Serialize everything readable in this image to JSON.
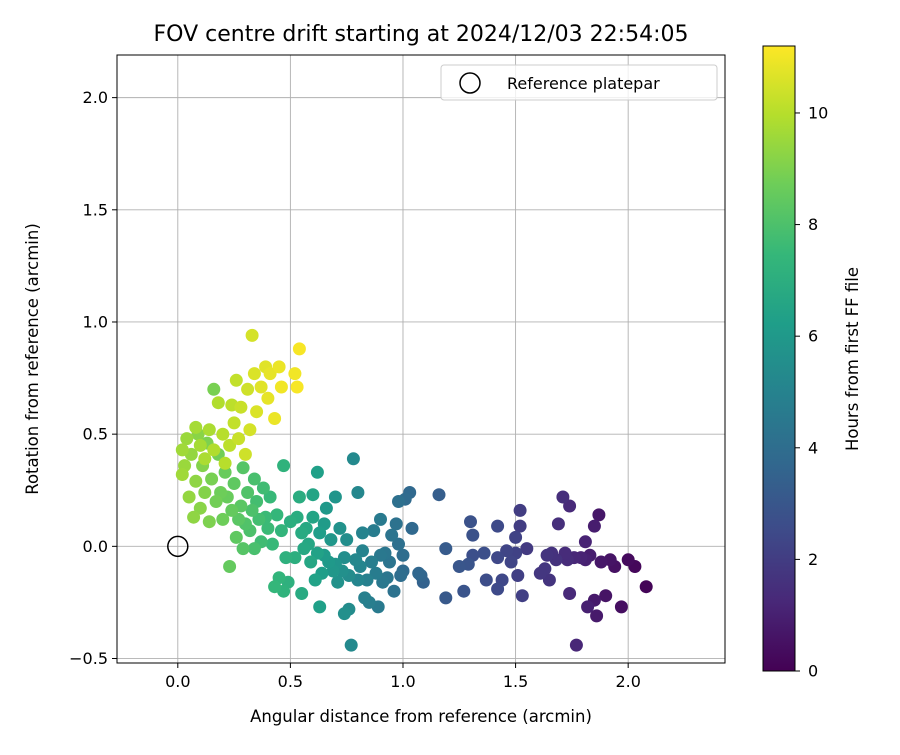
{
  "chart_data": {
    "type": "scatter",
    "title": "FOV centre drift starting at 2024/12/03 22:54:05",
    "xlabel": "Angular distance from reference (arcmin)",
    "ylabel": "Rotation from reference (arcmin)",
    "xlim": [
      -0.27,
      2.43
    ],
    "ylim": [
      -0.52,
      2.19
    ],
    "xticks": [
      0.0,
      0.5,
      1.0,
      1.5,
      2.0
    ],
    "xtick_labels": [
      "0.0",
      "0.5",
      "1.0",
      "1.5",
      "2.0"
    ],
    "yticks": [
      -0.5,
      0.0,
      0.5,
      1.0,
      1.5,
      2.0
    ],
    "ytick_labels": [
      "−0.5",
      "0.0",
      "0.5",
      "1.0",
      "1.5",
      "2.0"
    ],
    "grid": true,
    "legend": {
      "position": "top-right",
      "entries": [
        {
          "label": "Reference platepar",
          "marker": "open-circle"
        }
      ]
    },
    "reference_point": {
      "x": 0.0,
      "y": 0.0
    },
    "colorbar": {
      "label": "Hours from first FF file",
      "colormap": "viridis",
      "range": [
        0,
        11.2
      ],
      "ticks": [
        0,
        2,
        4,
        6,
        8,
        10
      ],
      "tick_labels": [
        "0",
        "2",
        "4",
        "6",
        "8",
        "10"
      ]
    },
    "points": [
      {
        "x": 2.08,
        "y": -0.18,
        "c": 0.1
      },
      {
        "x": 2.03,
        "y": -0.09,
        "c": 0.2
      },
      {
        "x": 2.0,
        "y": -0.06,
        "c": 0.3
      },
      {
        "x": 1.97,
        "y": -0.27,
        "c": 0.4
      },
      {
        "x": 1.94,
        "y": -0.09,
        "c": 0.5
      },
      {
        "x": 1.92,
        "y": -0.06,
        "c": 0.6
      },
      {
        "x": 1.9,
        "y": -0.22,
        "c": 0.6
      },
      {
        "x": 1.88,
        "y": -0.07,
        "c": 0.7
      },
      {
        "x": 1.87,
        "y": 0.14,
        "c": 0.7
      },
      {
        "x": 1.86,
        "y": -0.31,
        "c": 0.8
      },
      {
        "x": 1.85,
        "y": -0.24,
        "c": 0.8
      },
      {
        "x": 1.85,
        "y": 0.09,
        "c": 0.9
      },
      {
        "x": 1.83,
        "y": -0.04,
        "c": 0.9
      },
      {
        "x": 1.82,
        "y": -0.27,
        "c": 1.0
      },
      {
        "x": 1.81,
        "y": -0.06,
        "c": 1.0
      },
      {
        "x": 1.81,
        "y": 0.02,
        "c": 1.1
      },
      {
        "x": 1.79,
        "y": -0.05,
        "c": 1.1
      },
      {
        "x": 1.77,
        "y": -0.44,
        "c": 1.2
      },
      {
        "x": 1.76,
        "y": -0.05,
        "c": 1.2
      },
      {
        "x": 1.74,
        "y": -0.21,
        "c": 1.3
      },
      {
        "x": 1.74,
        "y": 0.18,
        "c": 1.3
      },
      {
        "x": 1.73,
        "y": -0.06,
        "c": 1.4
      },
      {
        "x": 1.72,
        "y": -0.03,
        "c": 1.4
      },
      {
        "x": 1.71,
        "y": 0.22,
        "c": 1.5
      },
      {
        "x": 1.69,
        "y": 0.1,
        "c": 1.5
      },
      {
        "x": 1.68,
        "y": -0.06,
        "c": 1.6
      },
      {
        "x": 1.66,
        "y": -0.03,
        "c": 1.6
      },
      {
        "x": 1.65,
        "y": -0.15,
        "c": 1.7
      },
      {
        "x": 1.64,
        "y": -0.04,
        "c": 1.7
      },
      {
        "x": 1.63,
        "y": -0.1,
        "c": 1.8
      },
      {
        "x": 1.61,
        "y": -0.12,
        "c": 1.8
      },
      {
        "x": 1.55,
        "y": -0.01,
        "c": 1.9
      },
      {
        "x": 1.52,
        "y": 0.16,
        "c": 2.0
      },
      {
        "x": 1.52,
        "y": 0.09,
        "c": 2.0
      },
      {
        "x": 1.53,
        "y": -0.22,
        "c": 2.1
      },
      {
        "x": 1.51,
        "y": -0.13,
        "c": 2.1
      },
      {
        "x": 1.5,
        "y": -0.03,
        "c": 2.2
      },
      {
        "x": 1.5,
        "y": 0.04,
        "c": 2.2
      },
      {
        "x": 1.48,
        "y": -0.07,
        "c": 2.3
      },
      {
        "x": 1.46,
        "y": -0.02,
        "c": 2.3
      },
      {
        "x": 1.44,
        "y": -0.15,
        "c": 2.4
      },
      {
        "x": 1.42,
        "y": -0.05,
        "c": 2.4
      },
      {
        "x": 1.42,
        "y": 0.09,
        "c": 2.5
      },
      {
        "x": 1.42,
        "y": -0.19,
        "c": 2.5
      },
      {
        "x": 1.37,
        "y": -0.15,
        "c": 2.6
      },
      {
        "x": 1.36,
        "y": -0.03,
        "c": 2.7
      },
      {
        "x": 1.31,
        "y": -0.04,
        "c": 2.7
      },
      {
        "x": 1.31,
        "y": 0.05,
        "c": 2.8
      },
      {
        "x": 1.3,
        "y": 0.11,
        "c": 2.8
      },
      {
        "x": 1.29,
        "y": -0.08,
        "c": 2.9
      },
      {
        "x": 1.27,
        "y": -0.2,
        "c": 2.9
      },
      {
        "x": 1.25,
        "y": -0.09,
        "c": 3.0
      },
      {
        "x": 1.19,
        "y": -0.23,
        "c": 3.1
      },
      {
        "x": 1.19,
        "y": -0.01,
        "c": 3.2
      },
      {
        "x": 1.16,
        "y": 0.23,
        "c": 3.3
      },
      {
        "x": 1.09,
        "y": -0.16,
        "c": 3.5
      },
      {
        "x": 1.08,
        "y": -0.13,
        "c": 3.6
      },
      {
        "x": 1.07,
        "y": -0.12,
        "c": 3.7
      },
      {
        "x": 1.04,
        "y": 0.08,
        "c": 3.8
      },
      {
        "x": 1.03,
        "y": 0.24,
        "c": 3.8
      },
      {
        "x": 1.01,
        "y": 0.21,
        "c": 3.9
      },
      {
        "x": 1.0,
        "y": -0.11,
        "c": 3.9
      },
      {
        "x": 1.0,
        "y": -0.04,
        "c": 4.0
      },
      {
        "x": 0.99,
        "y": -0.13,
        "c": 4.0
      },
      {
        "x": 0.98,
        "y": 0.2,
        "c": 4.1
      },
      {
        "x": 0.98,
        "y": 0.01,
        "c": 4.1
      },
      {
        "x": 0.97,
        "y": 0.1,
        "c": 4.2
      },
      {
        "x": 0.96,
        "y": -0.2,
        "c": 4.2
      },
      {
        "x": 0.95,
        "y": 0.05,
        "c": 4.3
      },
      {
        "x": 0.94,
        "y": -0.07,
        "c": 4.3
      },
      {
        "x": 0.93,
        "y": -0.14,
        "c": 4.4
      },
      {
        "x": 0.92,
        "y": -0.03,
        "c": 4.4
      },
      {
        "x": 0.91,
        "y": -0.16,
        "c": 4.5
      },
      {
        "x": 0.9,
        "y": -0.04,
        "c": 4.5
      },
      {
        "x": 0.9,
        "y": 0.12,
        "c": 4.6
      },
      {
        "x": 0.89,
        "y": -0.27,
        "c": 4.6
      },
      {
        "x": 0.88,
        "y": -0.12,
        "c": 4.7
      },
      {
        "x": 0.87,
        "y": 0.07,
        "c": 4.7
      },
      {
        "x": 0.86,
        "y": -0.07,
        "c": 4.8
      },
      {
        "x": 0.85,
        "y": -0.25,
        "c": 4.8
      },
      {
        "x": 0.84,
        "y": -0.15,
        "c": 4.9
      },
      {
        "x": 0.83,
        "y": -0.23,
        "c": 4.9
      },
      {
        "x": 0.82,
        "y": -0.02,
        "c": 5.0
      },
      {
        "x": 0.82,
        "y": 0.06,
        "c": 5.0
      },
      {
        "x": 0.81,
        "y": -0.09,
        "c": 5.1
      },
      {
        "x": 0.8,
        "y": -0.15,
        "c": 5.1
      },
      {
        "x": 0.8,
        "y": 0.24,
        "c": 5.2
      },
      {
        "x": 0.79,
        "y": -0.06,
        "c": 5.2
      },
      {
        "x": 0.78,
        "y": 0.39,
        "c": 5.3
      },
      {
        "x": 0.77,
        "y": -0.44,
        "c": 5.3
      },
      {
        "x": 0.76,
        "y": -0.28,
        "c": 5.4
      },
      {
        "x": 0.76,
        "y": -0.13,
        "c": 5.4
      },
      {
        "x": 0.75,
        "y": 0.03,
        "c": 5.5
      },
      {
        "x": 0.74,
        "y": -0.05,
        "c": 5.5
      },
      {
        "x": 0.74,
        "y": -0.3,
        "c": 5.6
      },
      {
        "x": 0.73,
        "y": -0.11,
        "c": 5.6
      },
      {
        "x": 0.72,
        "y": 0.08,
        "c": 5.7
      },
      {
        "x": 0.71,
        "y": -0.16,
        "c": 5.7
      },
      {
        "x": 0.7,
        "y": 0.22,
        "c": 5.8
      },
      {
        "x": 0.7,
        "y": -0.08,
        "c": 5.8
      },
      {
        "x": 0.69,
        "y": -0.11,
        "c": 5.9
      },
      {
        "x": 0.68,
        "y": 0.03,
        "c": 5.9
      },
      {
        "x": 0.67,
        "y": -0.07,
        "c": 6.0
      },
      {
        "x": 0.66,
        "y": 0.17,
        "c": 6.0
      },
      {
        "x": 0.65,
        "y": -0.04,
        "c": 6.1
      },
      {
        "x": 0.65,
        "y": 0.1,
        "c": 6.1
      },
      {
        "x": 0.64,
        "y": -0.12,
        "c": 6.2
      },
      {
        "x": 0.63,
        "y": 0.06,
        "c": 6.2
      },
      {
        "x": 0.63,
        "y": -0.27,
        "c": 6.3
      },
      {
        "x": 0.62,
        "y": 0.33,
        "c": 6.3
      },
      {
        "x": 0.62,
        "y": -0.03,
        "c": 6.4
      },
      {
        "x": 0.61,
        "y": -0.15,
        "c": 6.4
      },
      {
        "x": 0.6,
        "y": 0.13,
        "c": 6.5
      },
      {
        "x": 0.6,
        "y": 0.23,
        "c": 6.5
      },
      {
        "x": 0.59,
        "y": -0.07,
        "c": 6.6
      },
      {
        "x": 0.58,
        "y": 0.01,
        "c": 6.6
      },
      {
        "x": 0.57,
        "y": 0.08,
        "c": 6.7
      },
      {
        "x": 0.56,
        "y": -0.01,
        "c": 6.7
      },
      {
        "x": 0.55,
        "y": -0.21,
        "c": 6.8
      },
      {
        "x": 0.55,
        "y": 0.06,
        "c": 6.8
      },
      {
        "x": 0.54,
        "y": 0.22,
        "c": 6.9
      },
      {
        "x": 0.53,
        "y": 0.13,
        "c": 6.9
      },
      {
        "x": 0.52,
        "y": -0.05,
        "c": 7.0
      },
      {
        "x": 0.5,
        "y": 0.11,
        "c": 7.0
      },
      {
        "x": 0.49,
        "y": -0.16,
        "c": 7.1
      },
      {
        "x": 0.48,
        "y": -0.05,
        "c": 7.1
      },
      {
        "x": 0.47,
        "y": -0.2,
        "c": 7.2
      },
      {
        "x": 0.47,
        "y": 0.36,
        "c": 7.2
      },
      {
        "x": 0.46,
        "y": 0.07,
        "c": 7.3
      },
      {
        "x": 0.45,
        "y": -0.14,
        "c": 7.3
      },
      {
        "x": 0.44,
        "y": 0.14,
        "c": 7.4
      },
      {
        "x": 0.43,
        "y": -0.18,
        "c": 7.4
      },
      {
        "x": 0.42,
        "y": 0.01,
        "c": 7.5
      },
      {
        "x": 0.41,
        "y": 0.22,
        "c": 7.5
      },
      {
        "x": 0.4,
        "y": 0.08,
        "c": 7.6
      },
      {
        "x": 0.39,
        "y": 0.13,
        "c": 7.6
      },
      {
        "x": 0.38,
        "y": 0.26,
        "c": 7.7
      },
      {
        "x": 0.37,
        "y": 0.02,
        "c": 7.7
      },
      {
        "x": 0.36,
        "y": 0.12,
        "c": 7.8
      },
      {
        "x": 0.35,
        "y": 0.2,
        "c": 7.8
      },
      {
        "x": 0.34,
        "y": 0.3,
        "c": 7.9
      },
      {
        "x": 0.34,
        "y": -0.01,
        "c": 7.9
      },
      {
        "x": 0.33,
        "y": 0.16,
        "c": 8.0
      },
      {
        "x": 0.32,
        "y": 0.07,
        "c": 8.0
      },
      {
        "x": 0.31,
        "y": 0.24,
        "c": 8.1
      },
      {
        "x": 0.3,
        "y": 0.1,
        "c": 8.1
      },
      {
        "x": 0.29,
        "y": 0.35,
        "c": 8.2
      },
      {
        "x": 0.29,
        "y": -0.01,
        "c": 8.2
      },
      {
        "x": 0.28,
        "y": 0.18,
        "c": 8.3
      },
      {
        "x": 0.27,
        "y": 0.12,
        "c": 8.3
      },
      {
        "x": 0.26,
        "y": 0.04,
        "c": 8.4
      },
      {
        "x": 0.25,
        "y": 0.28,
        "c": 8.4
      },
      {
        "x": 0.24,
        "y": 0.16,
        "c": 8.5
      },
      {
        "x": 0.23,
        "y": -0.09,
        "c": 8.5
      },
      {
        "x": 0.22,
        "y": 0.22,
        "c": 8.6
      },
      {
        "x": 0.21,
        "y": 0.33,
        "c": 8.6
      },
      {
        "x": 0.2,
        "y": 0.12,
        "c": 8.7
      },
      {
        "x": 0.19,
        "y": 0.24,
        "c": 8.7
      },
      {
        "x": 0.18,
        "y": 0.41,
        "c": 8.8
      },
      {
        "x": 0.17,
        "y": 0.2,
        "c": 8.8
      },
      {
        "x": 0.16,
        "y": 0.7,
        "c": 8.9
      },
      {
        "x": 0.15,
        "y": 0.3,
        "c": 8.9
      },
      {
        "x": 0.14,
        "y": 0.11,
        "c": 9.0
      },
      {
        "x": 0.13,
        "y": 0.46,
        "c": 9.0
      },
      {
        "x": 0.12,
        "y": 0.24,
        "c": 9.1
      },
      {
        "x": 0.11,
        "y": 0.36,
        "c": 9.1
      },
      {
        "x": 0.1,
        "y": 0.17,
        "c": 9.2
      },
      {
        "x": 0.09,
        "y": 0.5,
        "c": 9.2
      },
      {
        "x": 0.08,
        "y": 0.29,
        "c": 9.3
      },
      {
        "x": 0.07,
        "y": 0.13,
        "c": 9.3
      },
      {
        "x": 0.06,
        "y": 0.41,
        "c": 9.4
      },
      {
        "x": 0.05,
        "y": 0.22,
        "c": 9.4
      },
      {
        "x": 0.04,
        "y": 0.48,
        "c": 9.5
      },
      {
        "x": 0.03,
        "y": 0.36,
        "c": 9.5
      },
      {
        "x": 0.02,
        "y": 0.43,
        "c": 9.6
      },
      {
        "x": 0.02,
        "y": 0.32,
        "c": 9.6
      },
      {
        "x": 0.08,
        "y": 0.53,
        "c": 9.7
      },
      {
        "x": 0.1,
        "y": 0.45,
        "c": 9.7
      },
      {
        "x": 0.12,
        "y": 0.39,
        "c": 9.8
      },
      {
        "x": 0.14,
        "y": 0.52,
        "c": 9.8
      },
      {
        "x": 0.16,
        "y": 0.43,
        "c": 9.9
      },
      {
        "x": 0.18,
        "y": 0.64,
        "c": 9.9
      },
      {
        "x": 0.2,
        "y": 0.5,
        "c": 10.0
      },
      {
        "x": 0.21,
        "y": 0.37,
        "c": 10.0
      },
      {
        "x": 0.23,
        "y": 0.45,
        "c": 10.1
      },
      {
        "x": 0.24,
        "y": 0.63,
        "c": 10.1
      },
      {
        "x": 0.25,
        "y": 0.55,
        "c": 10.2
      },
      {
        "x": 0.26,
        "y": 0.74,
        "c": 10.2
      },
      {
        "x": 0.27,
        "y": 0.48,
        "c": 10.3
      },
      {
        "x": 0.28,
        "y": 0.62,
        "c": 10.3
      },
      {
        "x": 0.3,
        "y": 0.41,
        "c": 10.4
      },
      {
        "x": 0.31,
        "y": 0.7,
        "c": 10.4
      },
      {
        "x": 0.32,
        "y": 0.52,
        "c": 10.5
      },
      {
        "x": 0.33,
        "y": 0.94,
        "c": 10.5
      },
      {
        "x": 0.34,
        "y": 0.77,
        "c": 10.6
      },
      {
        "x": 0.35,
        "y": 0.6,
        "c": 10.6
      },
      {
        "x": 0.37,
        "y": 0.71,
        "c": 10.7
      },
      {
        "x": 0.39,
        "y": 0.8,
        "c": 10.7
      },
      {
        "x": 0.4,
        "y": 0.66,
        "c": 10.8
      },
      {
        "x": 0.41,
        "y": 0.77,
        "c": 10.8
      },
      {
        "x": 0.43,
        "y": 0.57,
        "c": 10.9
      },
      {
        "x": 0.45,
        "y": 0.8,
        "c": 10.9
      },
      {
        "x": 0.46,
        "y": 0.71,
        "c": 11.0
      },
      {
        "x": 0.52,
        "y": 0.77,
        "c": 11.0
      },
      {
        "x": 0.53,
        "y": 0.71,
        "c": 11.1
      },
      {
        "x": 0.54,
        "y": 0.88,
        "c": 11.1
      }
    ]
  }
}
